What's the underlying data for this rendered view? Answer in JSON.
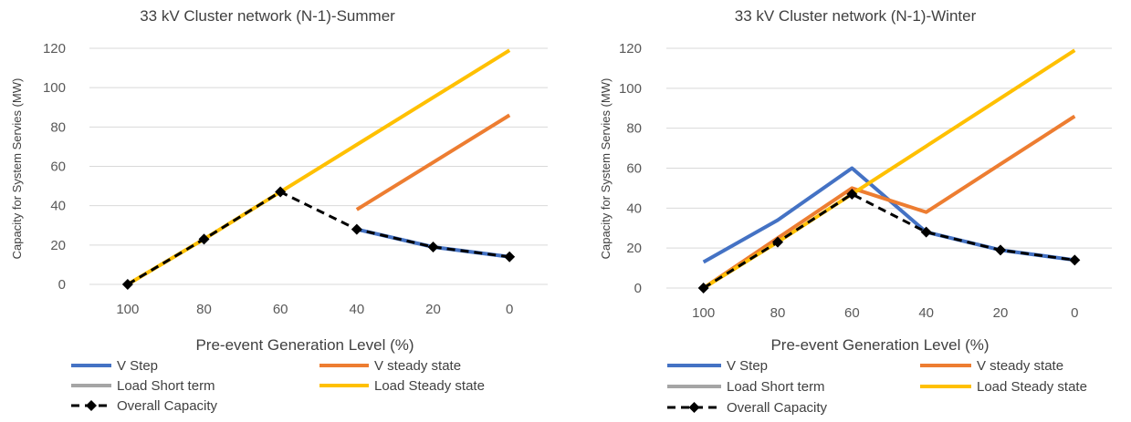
{
  "colors": {
    "v_step": "#4472c4",
    "v_steady": "#ed7d31",
    "load_short": "#a5a5a5",
    "load_steady": "#ffc000",
    "overall": "#000000",
    "grid": "#d9d9d9"
  },
  "chart_data": [
    {
      "type": "line",
      "title": "33 kV Cluster network (N-1)-Summer",
      "xlabel": "Pre-event Generation Level (%)",
      "ylabel": "Capacity for System Servies (MW)",
      "categories": [
        "100",
        "80",
        "60",
        "40",
        "20",
        "0"
      ],
      "ylim": [
        0,
        120
      ],
      "yticks": [
        0,
        20,
        40,
        60,
        80,
        100,
        120
      ],
      "grid": true,
      "legend_position": "bottom",
      "series": [
        {
          "name": "V Step",
          "color_key": "v_step",
          "values": [
            null,
            null,
            null,
            28,
            19,
            14
          ]
        },
        {
          "name": "V steady state",
          "color_key": "v_steady",
          "values": [
            null,
            null,
            null,
            38,
            62,
            86
          ]
        },
        {
          "name": "Load Short term",
          "color_key": "load_short",
          "values": [
            null,
            null,
            null,
            null,
            null,
            null
          ]
        },
        {
          "name": "Load Steady state",
          "color_key": "load_steady",
          "values": [
            0,
            23,
            47,
            71,
            95,
            119
          ]
        },
        {
          "name": "Overall Capacity",
          "color_key": "overall",
          "dashed": true,
          "marker": "diamond",
          "values": [
            0,
            23,
            47,
            28,
            19,
            14
          ]
        }
      ]
    },
    {
      "type": "line",
      "title": "33 kV Cluster network (N-1)-Winter",
      "xlabel": "Pre-event Generation Level (%)",
      "ylabel": "Capacity for System Servies (MW)",
      "categories": [
        "100",
        "80",
        "60",
        "40",
        "20",
        "0"
      ],
      "ylim": [
        0,
        120
      ],
      "yticks": [
        0,
        20,
        40,
        60,
        80,
        100,
        120
      ],
      "grid": true,
      "legend_position": "bottom",
      "series": [
        {
          "name": "V Step",
          "color_key": "v_step",
          "values": [
            13,
            34,
            60,
            28,
            19,
            14
          ]
        },
        {
          "name": "V steady state",
          "color_key": "v_steady",
          "values": [
            0,
            25,
            50,
            38,
            62,
            86
          ]
        },
        {
          "name": "Load Short term",
          "color_key": "load_short",
          "values": [
            null,
            null,
            null,
            null,
            null,
            null
          ]
        },
        {
          "name": "Load Steady state",
          "color_key": "load_steady",
          "values": [
            0,
            23,
            47,
            71,
            95,
            119
          ]
        },
        {
          "name": "Overall Capacity",
          "color_key": "overall",
          "dashed": true,
          "marker": "diamond",
          "values": [
            0,
            23,
            47,
            28,
            19,
            14
          ]
        }
      ]
    }
  ]
}
